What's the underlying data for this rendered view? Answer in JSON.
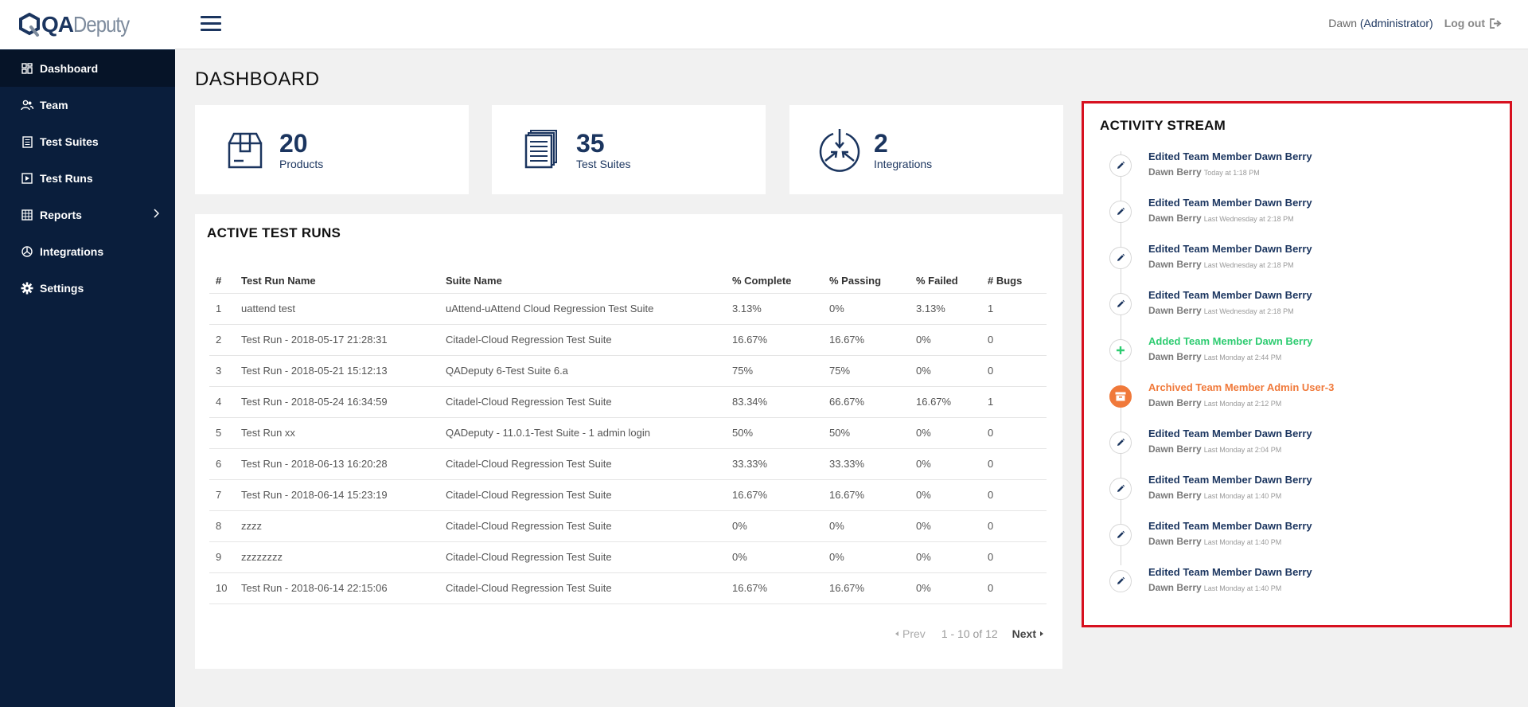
{
  "brand": {
    "part1": "QA",
    "part2": "Deputy"
  },
  "sidebar": {
    "items": [
      {
        "label": "Dashboard",
        "icon": "dashboard-icon"
      },
      {
        "label": "Team",
        "icon": "team-icon"
      },
      {
        "label": "Test Suites",
        "icon": "test-suites-icon"
      },
      {
        "label": "Test Runs",
        "icon": "test-runs-icon"
      },
      {
        "label": "Reports",
        "icon": "reports-icon"
      },
      {
        "label": "Integrations",
        "icon": "integrations-icon"
      },
      {
        "label": "Settings",
        "icon": "gear-icon"
      }
    ]
  },
  "topbar": {
    "user_name": "Dawn",
    "user_role": "(Administrator)",
    "logout_label": "Log out"
  },
  "page_title": "DASHBOARD",
  "stats": [
    {
      "value": "20",
      "label": "Products",
      "icon": "box-icon"
    },
    {
      "value": "35",
      "label": "Test Suites",
      "icon": "documents-icon"
    },
    {
      "value": "2",
      "label": "Integrations",
      "icon": "integration-arrows-icon"
    }
  ],
  "active_runs": {
    "title": "ACTIVE TEST RUNS",
    "columns": [
      "#",
      "Test Run Name",
      "Suite Name",
      "% Complete",
      "% Passing",
      "% Failed",
      "# Bugs"
    ],
    "rows": [
      [
        "1",
        "uattend test",
        "uAttend-uAttend Cloud Regression Test Suite",
        "3.13%",
        "0%",
        "3.13%",
        "1"
      ],
      [
        "2",
        "Test Run - 2018-05-17 21:28:31",
        "Citadel-Cloud Regression Test Suite",
        "16.67%",
        "16.67%",
        "0%",
        "0"
      ],
      [
        "3",
        "Test Run - 2018-05-21 15:12:13",
        "QADeputy 6-Test Suite 6.a",
        "75%",
        "75%",
        "0%",
        "0"
      ],
      [
        "4",
        "Test Run - 2018-05-24 16:34:59",
        "Citadel-Cloud Regression Test Suite",
        "83.34%",
        "66.67%",
        "16.67%",
        "1"
      ],
      [
        "5",
        "Test Run xx",
        "QADeputy - 11.0.1-Test Suite - 1 admin login",
        "50%",
        "50%",
        "0%",
        "0"
      ],
      [
        "6",
        "Test Run - 2018-06-13 16:20:28",
        "Citadel-Cloud Regression Test Suite",
        "33.33%",
        "33.33%",
        "0%",
        "0"
      ],
      [
        "7",
        "Test Run - 2018-06-14 15:23:19",
        "Citadel-Cloud Regression Test Suite",
        "16.67%",
        "16.67%",
        "0%",
        "0"
      ],
      [
        "8",
        "zzzz",
        "Citadel-Cloud Regression Test Suite",
        "0%",
        "0%",
        "0%",
        "0"
      ],
      [
        "9",
        "zzzzzzzz",
        "Citadel-Cloud Regression Test Suite",
        "0%",
        "0%",
        "0%",
        "0"
      ],
      [
        "10",
        "Test Run - 2018-06-14 22:15:06",
        "Citadel-Cloud Regression Test Suite",
        "16.67%",
        "16.67%",
        "0%",
        "0"
      ]
    ],
    "pager": {
      "prev": "Prev",
      "range": "1 - 10 of 12",
      "next": "Next"
    }
  },
  "activity": {
    "title": "ACTIVITY STREAM",
    "items": [
      {
        "type": "edit",
        "title": "Edited Team Member Dawn Berry",
        "user": "Dawn Berry",
        "time": "Today at 1:18 PM"
      },
      {
        "type": "edit",
        "title": "Edited Team Member Dawn Berry",
        "user": "Dawn Berry",
        "time": "Last Wednesday at 2:18 PM"
      },
      {
        "type": "edit",
        "title": "Edited Team Member Dawn Berry",
        "user": "Dawn Berry",
        "time": "Last Wednesday at 2:18 PM"
      },
      {
        "type": "edit",
        "title": "Edited Team Member Dawn Berry",
        "user": "Dawn Berry",
        "time": "Last Wednesday at 2:18 PM"
      },
      {
        "type": "add",
        "title": "Added Team Member Dawn Berry",
        "user": "Dawn Berry",
        "time": "Last Monday at 2:44 PM"
      },
      {
        "type": "archive",
        "title": "Archived Team Member Admin User-3",
        "user": "Dawn Berry",
        "time": "Last Monday at 2:12 PM"
      },
      {
        "type": "edit",
        "title": "Edited Team Member Dawn Berry",
        "user": "Dawn Berry",
        "time": "Last Monday at 2:04 PM"
      },
      {
        "type": "edit",
        "title": "Edited Team Member Dawn Berry",
        "user": "Dawn Berry",
        "time": "Last Monday at 1:40 PM"
      },
      {
        "type": "edit",
        "title": "Edited Team Member Dawn Berry",
        "user": "Dawn Berry",
        "time": "Last Monday at 1:40 PM"
      },
      {
        "type": "edit",
        "title": "Edited Team Member Dawn Berry",
        "user": "Dawn Berry",
        "time": "Last Monday at 1:40 PM"
      }
    ]
  },
  "colors": {
    "sidebar": "#0a1e3c",
    "brand_navy": "#1b355f",
    "added": "#2ecc71",
    "archived": "#f0793a",
    "highlight_border": "#d7101f"
  }
}
